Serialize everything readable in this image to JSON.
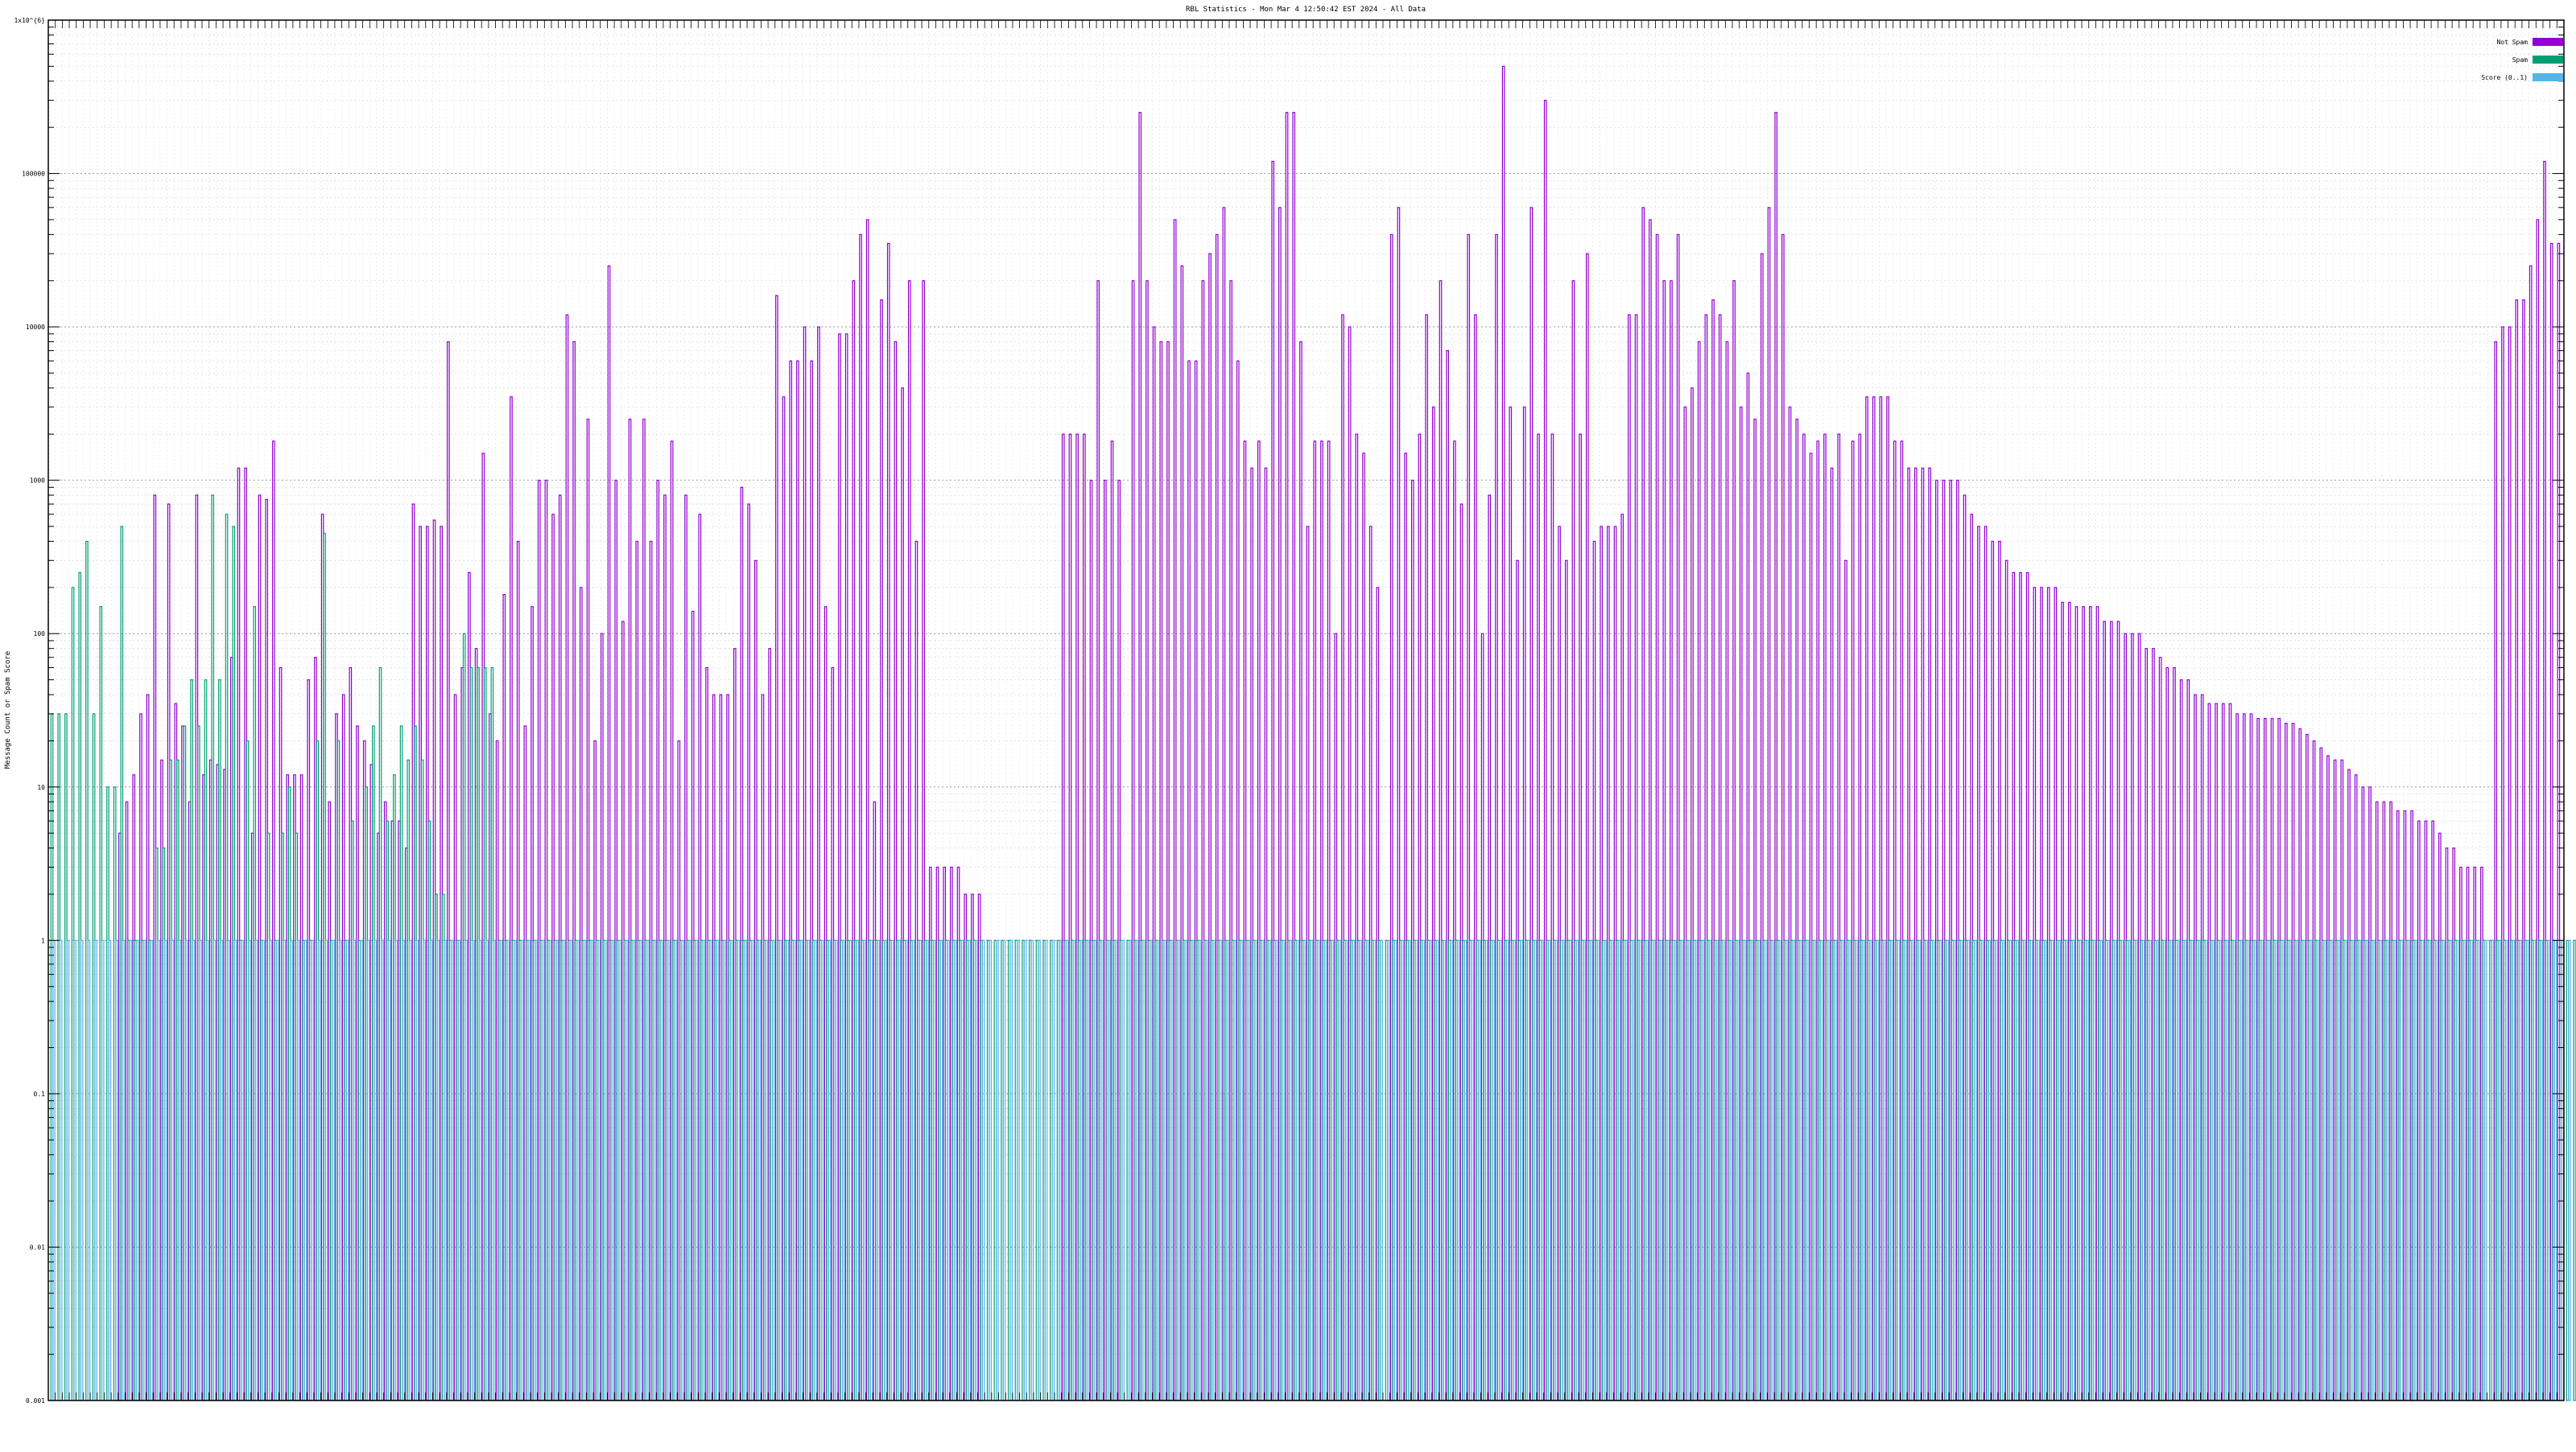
{
  "chart_data": {
    "type": "bar",
    "title": "RBL Statistics - Mon Mar  4 12:50:42 EST 2024 - All Data",
    "ylabel": "Message Count or Spam Score",
    "yscale": "log",
    "ylim": [
      0.001,
      1000000.0
    ],
    "ytick_labels": [
      "1x10^{6}",
      "100000",
      "10000",
      "1000",
      "100",
      "10",
      "1",
      "0.1",
      "0.01",
      "0.001"
    ],
    "grid": true,
    "legend": {
      "placement": "top-right",
      "entries": [
        "Not Spam",
        "Spam",
        "Score (0..1)"
      ]
    },
    "colors": {
      "not_spam": "#9400d3",
      "spam": "#009e73",
      "score": "#56b4e9"
    },
    "series": [
      {
        "name": "Not Spam",
        "values": [
          0.001,
          0.001,
          0.001,
          0.001,
          0.001,
          0.001,
          0.001,
          0.001,
          0.001,
          0.001,
          5,
          8,
          12,
          30,
          40,
          800,
          15,
          700,
          35,
          25,
          8,
          800,
          12,
          15,
          14,
          13,
          70,
          1200,
          1200,
          5,
          800,
          750,
          1800,
          60,
          12,
          12,
          12,
          50,
          70,
          600,
          8,
          30,
          40,
          60,
          25,
          20,
          14,
          5,
          8,
          6,
          6,
          4,
          700,
          500,
          500,
          550,
          500,
          8000,
          40,
          60,
          250,
          80,
          1500,
          30,
          20,
          180,
          3500,
          400,
          25,
          150,
          1000,
          1000,
          600,
          800,
          12000,
          8000,
          200,
          2500,
          20,
          100,
          25000,
          1000,
          120,
          2500,
          400,
          2500,
          400,
          1000,
          800,
          1800,
          20,
          800,
          140,
          600,
          60,
          40,
          40,
          40,
          80,
          900,
          700,
          300,
          40,
          80,
          16000,
          3500,
          6000,
          6000,
          10000,
          6000,
          10000,
          150,
          60,
          9000,
          9000,
          20000,
          40000,
          50000,
          8,
          15000,
          35000,
          8000,
          4000,
          20000,
          400,
          20000,
          3,
          3,
          3,
          3,
          3,
          2,
          2,
          2,
          0.001,
          0.001,
          0.001,
          0.001,
          0.001,
          0.001,
          0.001,
          0.001,
          0.001,
          0.001,
          0.001,
          2000,
          2000,
          2000,
          2000,
          1000,
          20000,
          1000,
          1800,
          1000,
          0.001,
          20000,
          250000,
          20000,
          10000,
          8000,
          8000,
          50000,
          25000,
          6000,
          6000,
          20000,
          30000,
          40000,
          60000,
          20000,
          6000,
          1800,
          1200,
          1800,
          1200,
          120000,
          60000,
          250000,
          250000,
          8000,
          500,
          1800,
          1800,
          1800,
          100,
          12000,
          10000,
          2000,
          1500,
          500,
          200,
          0.001,
          40000,
          60000,
          1500,
          1000,
          2000,
          12000,
          3000,
          20000,
          7000,
          1800,
          700,
          40000,
          12000,
          100,
          800,
          40000,
          500000,
          3000,
          300,
          3000,
          60000,
          2000,
          300000,
          2000,
          500,
          300,
          20000,
          2000,
          30000,
          400,
          500,
          500,
          500,
          600,
          12000,
          12000,
          60000,
          50000,
          40000,
          20000,
          20000,
          40000,
          3000,
          4000,
          8000,
          12000,
          15000,
          12000,
          8000,
          20000,
          3000,
          5000,
          2500,
          30000,
          60000,
          250000,
          40000,
          3000,
          2500,
          2000,
          1500,
          1800,
          2000,
          1200,
          2000,
          300,
          1800,
          2000,
          3500,
          3500,
          3500,
          3500,
          1800,
          1800,
          1200,
          1200,
          1200,
          1200,
          1000,
          1000,
          1000,
          1000,
          800,
          600,
          500,
          500,
          400,
          400,
          300,
          250,
          250,
          250,
          200,
          200,
          200,
          200,
          160,
          160,
          150,
          150,
          150,
          150,
          120,
          120,
          120,
          100,
          100,
          100,
          80,
          80,
          70,
          60,
          60,
          50,
          50,
          40,
          40,
          35,
          35,
          35,
          35,
          30,
          30,
          30,
          28,
          28,
          28,
          28,
          26,
          26,
          24,
          22,
          20,
          18,
          16,
          15,
          15,
          13,
          12,
          10,
          10,
          8,
          8,
          8,
          7,
          7,
          7,
          6,
          6,
          6,
          5,
          4,
          4,
          3,
          3,
          3,
          3,
          0.001,
          8000,
          10000,
          10000,
          15000,
          15000,
          25000,
          50000,
          120000,
          35000,
          35000
        ]
      },
      {
        "name": "Spam",
        "values": [
          30,
          30,
          30,
          200,
          250,
          400,
          30,
          150,
          10,
          10,
          500,
          1,
          1,
          1,
          1,
          4,
          4,
          15,
          15,
          25,
          50,
          25,
          50,
          800,
          50,
          600,
          500,
          1,
          20,
          150,
          1,
          5,
          1,
          5,
          10,
          5,
          1,
          1,
          20,
          450,
          1,
          20,
          1,
          6,
          1,
          10,
          25,
          60,
          6,
          12,
          25,
          15,
          25,
          15,
          6,
          2,
          2,
          1,
          1,
          100,
          60,
          60,
          60,
          60,
          1,
          1,
          1,
          1,
          1,
          1,
          1,
          1,
          1,
          1,
          1,
          1,
          1,
          1,
          1,
          1,
          1,
          1,
          1,
          1,
          1,
          1,
          1,
          1,
          1,
          1,
          1,
          1,
          1,
          1,
          1,
          1,
          1,
          1,
          1,
          1,
          1,
          1,
          1,
          1,
          1,
          1,
          1,
          1,
          1,
          1,
          1,
          1,
          1,
          1,
          1,
          1,
          1,
          1,
          1,
          1,
          1,
          1,
          1,
          1,
          1,
          1,
          1,
          1,
          1,
          1,
          1,
          1,
          1,
          1,
          1,
          1,
          1,
          1,
          1,
          1,
          1,
          1,
          1,
          1,
          1,
          1,
          1,
          1,
          1,
          1,
          1,
          1,
          1,
          1,
          1,
          1,
          1,
          1,
          1,
          1,
          1,
          1,
          1,
          1,
          1,
          1,
          1,
          1,
          1,
          1,
          1,
          1,
          1,
          1,
          1,
          1,
          1,
          1,
          1,
          1,
          1,
          1,
          1,
          1,
          1,
          1,
          1,
          1,
          1,
          1,
          1,
          1,
          1,
          1,
          1,
          1,
          1,
          1,
          1,
          1,
          1,
          1,
          1,
          1,
          1,
          1,
          1,
          1,
          1,
          1,
          1,
          1,
          1,
          1,
          1,
          1,
          1,
          1,
          1,
          1,
          1,
          1,
          1,
          1,
          1,
          1,
          1,
          1,
          1,
          1,
          1,
          1,
          1,
          1,
          1,
          1,
          1,
          1,
          1,
          1,
          1,
          1,
          1,
          1,
          1,
          1,
          1,
          1,
          1,
          1,
          1,
          1,
          1,
          1,
          1,
          1,
          1,
          1,
          1,
          1,
          1,
          1,
          1,
          1,
          1,
          1,
          1,
          1,
          1,
          1,
          1,
          1,
          1,
          1,
          1,
          1,
          1,
          1,
          1,
          1,
          1,
          1,
          1,
          1,
          1,
          1,
          1,
          1,
          1,
          1,
          1,
          1,
          1,
          1,
          1,
          1,
          1,
          1,
          1,
          1,
          1,
          1,
          1,
          1,
          1,
          1,
          1,
          1,
          1,
          1,
          1,
          1,
          1,
          1,
          1,
          1,
          1,
          1,
          1,
          1,
          1,
          1,
          1,
          1,
          1,
          1,
          1,
          1,
          1,
          1,
          1,
          1,
          1,
          1,
          1,
          1,
          1,
          1,
          1,
          1,
          1,
          1,
          1,
          1,
          1,
          1,
          1,
          1,
          1,
          1,
          1,
          1,
          1,
          1,
          1,
          1,
          1,
          1,
          1,
          1,
          1,
          1,
          1,
          1,
          1,
          1,
          1,
          1,
          1,
          1,
          1,
          1,
          1,
          1,
          1,
          1,
          1,
          1,
          1,
          1,
          1,
          1,
          1,
          1,
          1,
          1,
          1,
          1,
          1,
          1,
          1,
          1,
          1,
          1,
          1,
          1,
          1
        ]
      },
      {
        "name": "Score (0..1)",
        "values": [
          1,
          1,
          1,
          1,
          1,
          1,
          1,
          1,
          1,
          1,
          1,
          1,
          1,
          1,
          1,
          1,
          1,
          1,
          1,
          1,
          1,
          1,
          1,
          1,
          1,
          1,
          1,
          1,
          1,
          1,
          1,
          1,
          1,
          1,
          1,
          1,
          1,
          1,
          1,
          1,
          1,
          1,
          1,
          1,
          1,
          1,
          1,
          1,
          1,
          1,
          1,
          1,
          1,
          1,
          1,
          1,
          1,
          1,
          1,
          1,
          1,
          1,
          1,
          1,
          1,
          1,
          1,
          1,
          1,
          1,
          1,
          1,
          1,
          1,
          1,
          1,
          1,
          1,
          1,
          1,
          1,
          1,
          1,
          1,
          1,
          1,
          1,
          1,
          1,
          1,
          1,
          1,
          1,
          1,
          1,
          1,
          1,
          1,
          1,
          1,
          1,
          1,
          1,
          1,
          1,
          1,
          1,
          1,
          1,
          1,
          1,
          1,
          1,
          1,
          1,
          1,
          1,
          1,
          1,
          1,
          1,
          1,
          1,
          1,
          1,
          1,
          1,
          1,
          1,
          1,
          1,
          1,
          1,
          1,
          1,
          1,
          1,
          1,
          1,
          1,
          1,
          1,
          1,
          1,
          1,
          1,
          1,
          1,
          1,
          1,
          1,
          1,
          1,
          1,
          1,
          1,
          1,
          1,
          1,
          1,
          1,
          1,
          1,
          1,
          1,
          1,
          1,
          1,
          1,
          1,
          1,
          1,
          1,
          1,
          1,
          1,
          1,
          1,
          1,
          1,
          1,
          1,
          1,
          1,
          1,
          1,
          1,
          1,
          1,
          1,
          1,
          1,
          1,
          1,
          1,
          1,
          1,
          1,
          1,
          1,
          1,
          1,
          1,
          1,
          1,
          1,
          1,
          1,
          1,
          1,
          1,
          1,
          1,
          1,
          1,
          1,
          1,
          1,
          1,
          1,
          1,
          1,
          1,
          1,
          1,
          1,
          1,
          1,
          1,
          1,
          1,
          1,
          1,
          1,
          1,
          1,
          1,
          1,
          1,
          1,
          1,
          1,
          1,
          1,
          1,
          1,
          1,
          1,
          1,
          1,
          1,
          1,
          1,
          1,
          1,
          1,
          1,
          1,
          1,
          1,
          1,
          1,
          1,
          1,
          1,
          1,
          1,
          1,
          1,
          1,
          1,
          1,
          1,
          1,
          1,
          1,
          1,
          1,
          1,
          1,
          1,
          1,
          1,
          1,
          1,
          1,
          1,
          1,
          1,
          1,
          1,
          1,
          1,
          1,
          1,
          1,
          1,
          1,
          1,
          1,
          1,
          1,
          1,
          1,
          1,
          1,
          1,
          1,
          1,
          1,
          1,
          1,
          1,
          1,
          1,
          1,
          1,
          1,
          1,
          1,
          1,
          1,
          1,
          1,
          1,
          1,
          1,
          1,
          1,
          1,
          1,
          1,
          1,
          1,
          1,
          1,
          1,
          1,
          1,
          1,
          1,
          1,
          1,
          1,
          1,
          1,
          1,
          1,
          1,
          1,
          1,
          1,
          1,
          1,
          1,
          1,
          1,
          1,
          1,
          1,
          1,
          1,
          1,
          1,
          1,
          1,
          1,
          1,
          1,
          1,
          1,
          1,
          1,
          1,
          1,
          1,
          1,
          1,
          1,
          1,
          1,
          1,
          1,
          1,
          1,
          1,
          1,
          1,
          1,
          1,
          1,
          1,
          1,
          1,
          1,
          1,
          1,
          1,
          1
        ]
      }
    ]
  }
}
